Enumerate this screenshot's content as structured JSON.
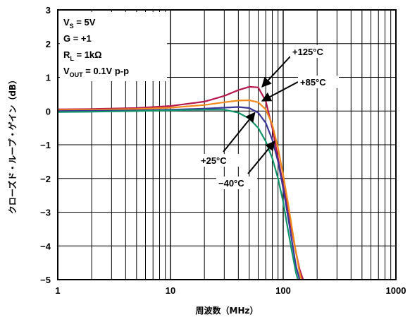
{
  "chart_data": {
    "type": "line",
    "title": "",
    "xlabel": "周波数（MHz）",
    "ylabel": "クローズド・ループ・ゲイン（dB）",
    "xscale": "log",
    "xlim": [
      1,
      1000
    ],
    "ylim": [
      -5,
      3
    ],
    "x_ticks": [
      "1",
      "10",
      "100",
      "1000"
    ],
    "y_ticks": [
      "3",
      "2",
      "1",
      "0",
      "−1",
      "−2",
      "−3",
      "−4",
      "−5"
    ],
    "grid": true,
    "conditions": [
      {
        "main": "V",
        "sub": "S",
        "rest": " = 5V"
      },
      {
        "main": "G = +1",
        "sub": "",
        "rest": ""
      },
      {
        "main": "R",
        "sub": "L",
        "rest": " = 1kΩ"
      },
      {
        "main": "V",
        "sub": "OUT",
        "rest": " = 0.1V p-p"
      }
    ],
    "series": [
      {
        "name": "+125°C",
        "color": "#b5174e",
        "x": [
          1,
          2,
          5,
          10,
          20,
          30,
          40,
          50,
          60,
          70,
          80,
          90,
          100,
          110,
          120,
          130,
          140,
          150
        ],
        "y": [
          0.05,
          0.06,
          0.09,
          0.15,
          0.28,
          0.45,
          0.62,
          0.72,
          0.7,
          0.3,
          -0.5,
          -1.4,
          -2.2,
          -2.9,
          -3.6,
          -4.2,
          -4.7,
          -5.0
        ]
      },
      {
        "name": "+85°C",
        "color": "#f08a1c",
        "x": [
          1,
          2,
          5,
          10,
          20,
          30,
          40,
          50,
          60,
          70,
          80,
          90,
          100,
          110,
          120,
          130,
          140,
          145
        ],
        "y": [
          0.03,
          0.04,
          0.06,
          0.1,
          0.18,
          0.26,
          0.31,
          0.32,
          0.26,
          0.05,
          -0.4,
          -1.1,
          -1.9,
          -2.7,
          -3.5,
          -4.2,
          -4.8,
          -5.0
        ]
      },
      {
        "name": "+25°C",
        "color": "#3a3696",
        "x": [
          1,
          2,
          5,
          10,
          20,
          30,
          40,
          50,
          60,
          70,
          80,
          90,
          100,
          110,
          120,
          130,
          140
        ],
        "y": [
          0.0,
          0.01,
          0.02,
          0.04,
          0.07,
          0.1,
          0.12,
          0.09,
          -0.05,
          -0.35,
          -0.85,
          -1.5,
          -2.3,
          -3.1,
          -3.9,
          -4.6,
          -5.0
        ]
      },
      {
        "name": "−40°C",
        "color": "#11946a",
        "x": [
          1,
          2,
          5,
          10,
          20,
          30,
          40,
          50,
          60,
          70,
          80,
          90,
          100,
          110,
          120,
          130,
          135
        ],
        "y": [
          -0.03,
          -0.02,
          0.0,
          0.02,
          0.04,
          0.04,
          -0.05,
          -0.22,
          -0.5,
          -0.9,
          -1.4,
          -2.0,
          -2.7,
          -3.5,
          -4.2,
          -4.8,
          -5.0
        ]
      }
    ],
    "annotations": [
      {
        "text": "+125°C",
        "target_x": 65,
        "target_y": 0.72
      },
      {
        "text": "+85°C",
        "target_x": 65,
        "target_y": 0.3
      },
      {
        "text": "+25°C",
        "target_x": 56,
        "target_y": -0.05
      },
      {
        "text": "−40°C",
        "target_x": 84,
        "target_y": -0.9
      }
    ]
  }
}
